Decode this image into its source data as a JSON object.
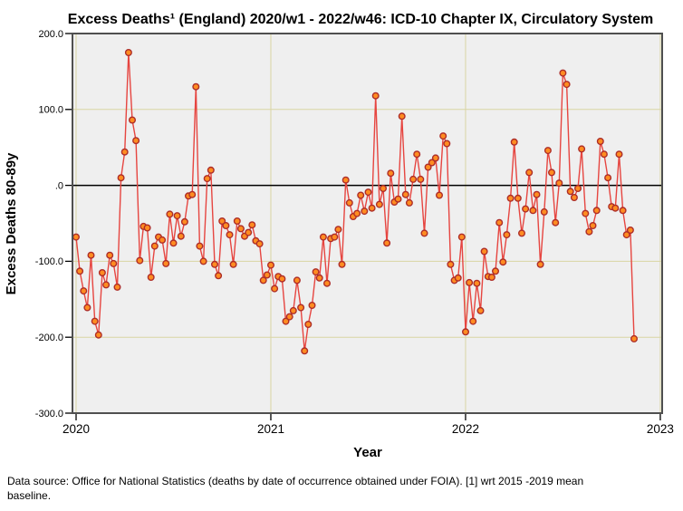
{
  "chart_data": {
    "type": "line",
    "title": "Excess Deaths¹ (England) 2020/w1 - 2022/w46: ICD-10 Chapter IX, Circulatory System",
    "xlabel": "Year",
    "ylabel": "Excess Deaths 80-89y",
    "ylim": [
      -300,
      200
    ],
    "ytick_values": [
      200,
      100,
      0,
      -100,
      -200,
      -300
    ],
    "ytick_labels": [
      "200.0",
      "100.0",
      ".0",
      "-100.0",
      "-200.0",
      "-300.0"
    ],
    "xtick_labels": [
      "2020",
      "2021",
      "2022",
      "2023"
    ],
    "x_range_note": "weekly data, 2020/w1 through 2022/w46",
    "weeks": [
      {
        "year": 2020,
        "count": 52
      },
      {
        "year": 2021,
        "count": 52
      },
      {
        "year": 2022,
        "count": 46
      }
    ],
    "gridlines": {
      "horizontal_at": [
        100,
        -100,
        -200
      ],
      "vertical_at_year_ticks": true
    },
    "zero_reference_line": 0,
    "legend": "none",
    "colors": {
      "line": "#e64540",
      "marker_fill": "#ff8c21",
      "marker_stroke": "#ad2d28",
      "grid": "#d9d5a3",
      "plot_bg": "#efefef",
      "frame": "#4f4f4f",
      "zero_line": "#000000"
    },
    "series": [
      {
        "name": "Excess deaths 80-89y (weekly)",
        "values": [
          -68,
          -113,
          -139,
          -161,
          -92,
          -179,
          -197,
          -115,
          -131,
          -92,
          -103,
          -134,
          10,
          44,
          175,
          86,
          59,
          -99,
          -54,
          -56,
          -121,
          -80,
          -68,
          -72,
          -103,
          -38,
          -76,
          -40,
          -67,
          -48,
          -14,
          -12,
          130,
          -80,
          -100,
          9,
          20,
          -104,
          -119,
          -47,
          -53,
          -65,
          -104,
          -47,
          -57,
          -67,
          -62,
          -52,
          -73,
          -77,
          -125,
          -118,
          -105,
          -136,
          -120,
          -123,
          -179,
          -173,
          -165,
          -125,
          -161,
          -218,
          -183,
          -158,
          -114,
          -122,
          -68,
          -129,
          -70,
          -68,
          -58,
          -104,
          7,
          -23,
          -41,
          -37,
          -13,
          -34,
          -9,
          -30,
          118,
          -25,
          -4,
          -76,
          16,
          -22,
          -18,
          91,
          -12,
          -23,
          8,
          41,
          8,
          -63,
          24,
          30,
          36,
          -13,
          65,
          55,
          -104,
          -125,
          -122,
          -68,
          -193,
          -128,
          -179,
          -129,
          -165,
          -87,
          -120,
          -121,
          -113,
          -49,
          -101,
          -65,
          -17,
          57,
          -17,
          -63,
          -31,
          17,
          -33,
          -12,
          -104,
          -35,
          46,
          17,
          -49,
          3,
          148,
          133,
          -8,
          -16,
          -4,
          48,
          -37,
          -61,
          -53,
          -33,
          58,
          41,
          10,
          -28,
          -30,
          41,
          -33,
          -65,
          -59,
          -202
        ]
      }
    ]
  },
  "footnote": {
    "lines": [
      "Data source: Office for National Statistics (deaths by date of occurrence obtained under FOIA). [1] wrt 2015 -2019 mean",
      "baseline."
    ]
  }
}
